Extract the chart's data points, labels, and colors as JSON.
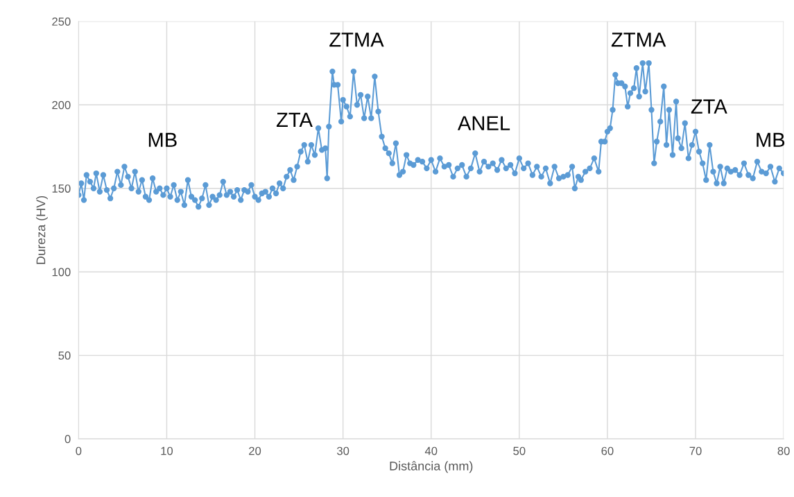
{
  "chart_data": {
    "type": "line",
    "xlabel": "Distância (mm)",
    "ylabel": "Dureza (HV)",
    "xlim": [
      0,
      80
    ],
    "xticks": [
      0,
      10,
      20,
      30,
      40,
      50,
      60,
      70,
      80
    ],
    "ylim": [
      0,
      250
    ],
    "yticks": [
      0,
      50,
      100,
      150,
      200,
      250
    ],
    "grid": true,
    "marker": "circle",
    "line_style": "solid",
    "annotations": [
      "MB",
      "ZTA",
      "ZTMA",
      "ANEL",
      "ZTMA",
      "ZTA",
      "MB"
    ],
    "series": [
      {
        "color": "#5b9bd5",
        "x": [
          0,
          0.3,
          0.6,
          0.9,
          1.3,
          1.7,
          2,
          2.4,
          2.8,
          3.2,
          3.6,
          4,
          4.4,
          4.8,
          5.2,
          5.6,
          6,
          6.4,
          6.8,
          7.2,
          7.6,
          8,
          8.4,
          8.8,
          9.2,
          9.6,
          10,
          10.4,
          10.8,
          11.2,
          11.6,
          12,
          12.4,
          12.8,
          13.2,
          13.6,
          14,
          14.4,
          14.8,
          15.2,
          15.6,
          16,
          16.4,
          16.8,
          17.2,
          17.6,
          18,
          18.4,
          18.8,
          19.2,
          19.6,
          20,
          20.4,
          20.8,
          21.2,
          21.6,
          22,
          22.4,
          22.8,
          23.2,
          23.6,
          24,
          24.4,
          24.8,
          25.2,
          25.6,
          26,
          26.4,
          26.8,
          27.2,
          27.6,
          28,
          28.2,
          28.4,
          28.8,
          29,
          29.4,
          29.8,
          30,
          30.4,
          30.8,
          31.2,
          31.6,
          32,
          32.4,
          32.8,
          33.2,
          33.6,
          34,
          34.4,
          34.8,
          35.2,
          35.6,
          36,
          36.4,
          36.8,
          37.2,
          37.6,
          38,
          38.5,
          39,
          39.5,
          40,
          40.5,
          41,
          41.5,
          42,
          42.5,
          43,
          43.5,
          44,
          44.5,
          45,
          45.5,
          46,
          46.5,
          47,
          47.5,
          48,
          48.5,
          49,
          49.5,
          50,
          50.5,
          51,
          51.5,
          52,
          52.5,
          53,
          53.5,
          54,
          54.5,
          55,
          55.5,
          56,
          56.3,
          56.7,
          57,
          57.5,
          58,
          58.5,
          59,
          59.3,
          59.7,
          60,
          60.3,
          60.6,
          60.9,
          61.2,
          61.6,
          62,
          62.3,
          62.6,
          63,
          63.3,
          63.6,
          64,
          64.3,
          64.7,
          65,
          65.3,
          65.6,
          66,
          66.4,
          66.7,
          67,
          67.4,
          67.8,
          68,
          68.4,
          68.8,
          69.2,
          69.6,
          70,
          70.4,
          70.8,
          71.2,
          71.6,
          72,
          72.4,
          72.8,
          73.2,
          73.6,
          74,
          74.5,
          75,
          75.5,
          76,
          76.5,
          77,
          77.5,
          78,
          78.5,
          79,
          79.5,
          80
        ],
        "values": [
          146,
          153,
          143,
          158,
          154,
          150,
          159,
          148,
          158,
          149,
          144,
          150,
          160,
          152,
          163,
          157,
          150,
          160,
          148,
          155,
          145,
          143,
          156,
          148,
          150,
          146,
          150,
          145,
          152,
          143,
          148,
          140,
          155,
          145,
          143,
          139,
          144,
          152,
          140,
          145,
          143,
          146,
          154,
          146,
          148,
          145,
          149,
          143,
          149,
          148,
          152,
          145,
          143,
          147,
          148,
          145,
          150,
          147,
          153,
          150,
          157,
          161,
          155,
          163,
          172,
          176,
          166,
          176,
          170,
          186,
          173,
          174,
          156,
          187,
          220,
          212,
          212,
          190,
          203,
          199,
          193,
          220,
          200,
          206,
          192,
          205,
          192,
          217,
          196,
          181,
          174,
          171,
          165,
          177,
          158,
          160,
          170,
          165,
          164,
          167,
          166,
          162,
          167,
          160,
          168,
          163,
          164,
          157,
          162,
          164,
          157,
          162,
          171,
          160,
          166,
          163,
          165,
          161,
          167,
          162,
          164,
          159,
          168,
          162,
          165,
          158,
          163,
          157,
          162,
          153,
          163,
          156,
          157,
          158,
          163,
          150,
          157,
          155,
          160,
          162,
          168,
          160,
          178,
          178,
          184,
          186,
          197,
          218,
          213,
          213,
          211,
          199,
          207,
          210,
          222,
          205,
          225,
          208,
          225,
          197,
          165,
          178,
          190,
          211,
          176,
          197,
          170,
          202,
          180,
          174,
          189,
          168,
          176,
          184,
          172,
          165,
          155,
          176,
          160,
          153,
          163,
          153,
          162,
          160,
          161,
          158,
          165,
          158,
          156,
          166,
          160,
          159,
          163,
          154,
          162,
          159
        ]
      }
    ]
  }
}
